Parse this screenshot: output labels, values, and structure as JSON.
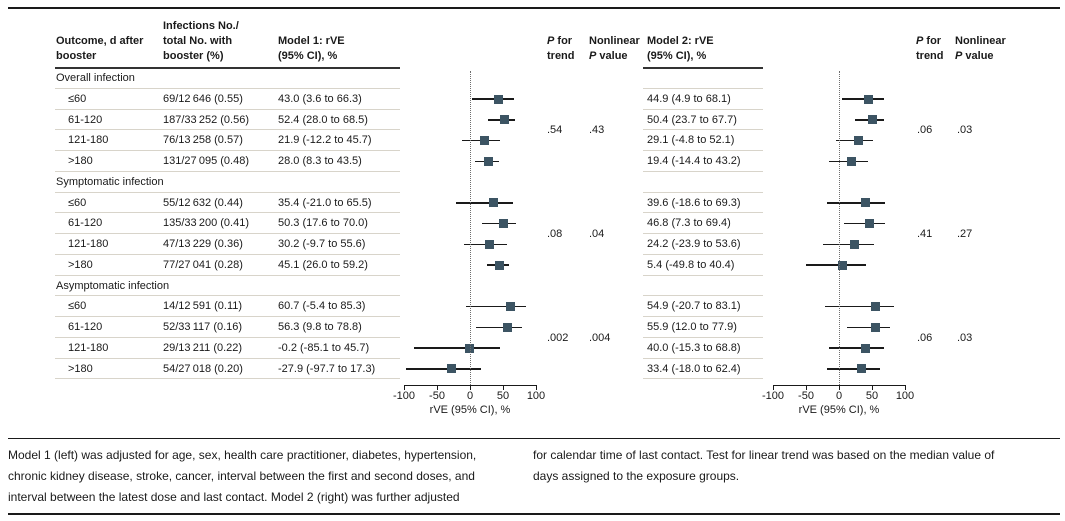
{
  "colors": {
    "marker": "#3c5463",
    "ci_line": "#1a1a1a",
    "row_rule": "#d8d4ca",
    "frame_rule": "#1a1a1a"
  },
  "headers": {
    "outcome": [
      "Outcome, d after",
      "booster"
    ],
    "infections": [
      "Infections No./",
      "total No. with",
      "booster (%)"
    ],
    "model1": [
      "Model 1: rVE",
      "(95% CI), %"
    ],
    "model2": [
      "Model 2: rVE",
      "(95% CI), %"
    ],
    "p": "P",
    "for_word": " for",
    "trend_word": "trend",
    "nonlinear_word": "Nonlinear",
    "value_word": " value"
  },
  "sections": [
    {
      "label": "Overall infection",
      "m1_p_trend": ".54",
      "m1_p_nonlinear": ".43",
      "m2_p_trend": ".06",
      "m2_p_nonlinear": ".03",
      "rows": [
        {
          "outcome": "≤60",
          "infections": "69/12 646 (0.55)",
          "m1_text": "43.0 (3.6 to 66.3)",
          "m1": [
            43.0,
            3.6,
            66.3
          ],
          "m2_text": "44.9 (4.9 to 68.1)",
          "m2": [
            44.9,
            4.9,
            68.1
          ]
        },
        {
          "outcome": "61-120",
          "infections": "187/33 252 (0.56)",
          "m1_text": "52.4 (28.0 to 68.5)",
          "m1": [
            52.4,
            28.0,
            68.5
          ],
          "m2_text": "50.4 (23.7 to 67.7)",
          "m2": [
            50.4,
            23.7,
            67.7
          ]
        },
        {
          "outcome": "121-180",
          "infections": "76/13 258 (0.57)",
          "m1_text": "21.9 (-12.2 to 45.7)",
          "m1": [
            21.9,
            -12.2,
            45.7
          ],
          "m2_text": "29.1 (-4.8 to 52.1)",
          "m2": [
            29.1,
            -4.8,
            52.1
          ]
        },
        {
          "outcome": ">180",
          "infections": "131/27 095 (0.48)",
          "m1_text": "28.0 (8.3 to 43.5)",
          "m1": [
            28.0,
            8.3,
            43.5
          ],
          "m2_text": "19.4 (-14.4 to 43.2)",
          "m2": [
            19.4,
            -14.4,
            43.2
          ]
        }
      ]
    },
    {
      "label": "Symptomatic infection",
      "m1_p_trend": ".08",
      "m1_p_nonlinear": ".04",
      "m2_p_trend": ".41",
      "m2_p_nonlinear": ".27",
      "rows": [
        {
          "outcome": "≤60",
          "infections": "55/12 632 (0.44)",
          "m1_text": "35.4 (-21.0 to 65.5)",
          "m1": [
            35.4,
            -21.0,
            65.5
          ],
          "m2_text": "39.6 (-18.6 to 69.3)",
          "m2": [
            39.6,
            -18.6,
            69.3
          ]
        },
        {
          "outcome": "61-120",
          "infections": "135/33 200 (0.41)",
          "m1_text": "50.3 (17.6 to 70.0)",
          "m1": [
            50.3,
            17.6,
            70.0
          ],
          "m2_text": "46.8 (7.3 to 69.4)",
          "m2": [
            46.8,
            7.3,
            69.4
          ]
        },
        {
          "outcome": "121-180",
          "infections": "47/13 229 (0.36)",
          "m1_text": "30.2 (-9.7 to 55.6)",
          "m1": [
            30.2,
            -9.7,
            55.6
          ],
          "m2_text": "24.2 (-23.9 to 53.6)",
          "m2": [
            24.2,
            -23.9,
            53.6
          ]
        },
        {
          "outcome": ">180",
          "infections": "77/27 041 (0.28)",
          "m1_text": "45.1 (26.0 to 59.2)",
          "m1": [
            45.1,
            26.0,
            59.2
          ],
          "m2_text": "5.4 (-49.8 to 40.4)",
          "m2": [
            5.4,
            -49.8,
            40.4
          ]
        }
      ]
    },
    {
      "label": "Asymptomatic infection",
      "m1_p_trend": ".002",
      "m1_p_nonlinear": ".004",
      "m2_p_trend": ".06",
      "m2_p_nonlinear": ".03",
      "rows": [
        {
          "outcome": "≤60",
          "infections": "14/12 591 (0.11)",
          "m1_text": "60.7 (-5.4 to 85.3)",
          "m1": [
            60.7,
            -5.4,
            85.3
          ],
          "m2_text": "54.9 (-20.7 to 83.1)",
          "m2": [
            54.9,
            -20.7,
            83.1
          ]
        },
        {
          "outcome": "61-120",
          "infections": "52/33 117 (0.16)",
          "m1_text": "56.3 (9.8 to 78.8)",
          "m1": [
            56.3,
            9.8,
            78.8
          ],
          "m2_text": "55.9 (12.0 to 77.9)",
          "m2": [
            55.9,
            12.0,
            77.9
          ]
        },
        {
          "outcome": "121-180",
          "infections": "29/13 211 (0.22)",
          "m1_text": "-0.2 (-85.1 to 45.7)",
          "m1": [
            -0.2,
            -85.1,
            45.7
          ],
          "m2_text": "40.0 (-15.3 to 68.8)",
          "m2": [
            40.0,
            -15.3,
            68.8
          ]
        },
        {
          "outcome": ">180",
          "infections": "54/27 018 (0.20)",
          "m1_text": "-27.9 (-97.7 to 17.3)",
          "m1": [
            -27.9,
            -97.7,
            17.3
          ],
          "m2_text": "33.4 (-18.0 to 62.4)",
          "m2": [
            33.4,
            -18.0,
            62.4
          ]
        }
      ]
    }
  ],
  "axis": {
    "ticks": [
      -100,
      -50,
      0,
      50,
      100
    ],
    "range": [
      -100,
      100
    ],
    "label": "rVE (95% CI), %",
    "reference_line_x": 0
  },
  "footnote": {
    "left": [
      "Model 1 (left) was adjusted for age, sex, health care practitioner, diabetes, hypertension,",
      "chronic kidney disease, stroke, cancer, interval between the first and second doses, and",
      "interval between the latest dose and last contact. Model 2 (right) was further adjusted"
    ],
    "right": [
      "for calendar time of last contact. Test for linear trend was based on the median value of",
      "days assigned to the exposure groups."
    ]
  },
  "chart_data": [
    {
      "type": "scatter",
      "variant": "forest-plot",
      "title": "Model 1: rVE (95% CI), %",
      "xlabel": "rVE (95% CI), %",
      "xlim": [
        -100,
        100
      ],
      "xticks": [
        -100,
        -50,
        0,
        50,
        100
      ],
      "reference_line_x": 0,
      "legend_position": "none",
      "grid": false,
      "groups": [
        {
          "name": "Overall infection",
          "p_for_trend": ".54",
          "nonlinear_p_value": ".43",
          "points": [
            {
              "label": "≤60",
              "estimate": 43.0,
              "ci_low": 3.6,
              "ci_high": 66.3
            },
            {
              "label": "61-120",
              "estimate": 52.4,
              "ci_low": 28.0,
              "ci_high": 68.5
            },
            {
              "label": "121-180",
              "estimate": 21.9,
              "ci_low": -12.2,
              "ci_high": 45.7
            },
            {
              "label": ">180",
              "estimate": 28.0,
              "ci_low": 8.3,
              "ci_high": 43.5
            }
          ]
        },
        {
          "name": "Symptomatic infection",
          "p_for_trend": ".08",
          "nonlinear_p_value": ".04",
          "points": [
            {
              "label": "≤60",
              "estimate": 35.4,
              "ci_low": -21.0,
              "ci_high": 65.5
            },
            {
              "label": "61-120",
              "estimate": 50.3,
              "ci_low": 17.6,
              "ci_high": 70.0
            },
            {
              "label": "121-180",
              "estimate": 30.2,
              "ci_low": -9.7,
              "ci_high": 55.6
            },
            {
              "label": ">180",
              "estimate": 45.1,
              "ci_low": 26.0,
              "ci_high": 59.2
            }
          ]
        },
        {
          "name": "Asymptomatic infection",
          "p_for_trend": ".002",
          "nonlinear_p_value": ".004",
          "points": [
            {
              "label": "≤60",
              "estimate": 60.7,
              "ci_low": -5.4,
              "ci_high": 85.3
            },
            {
              "label": "61-120",
              "estimate": 56.3,
              "ci_low": 9.8,
              "ci_high": 78.8
            },
            {
              "label": "121-180",
              "estimate": -0.2,
              "ci_low": -85.1,
              "ci_high": 45.7
            },
            {
              "label": ">180",
              "estimate": -27.9,
              "ci_low": -97.7,
              "ci_high": 17.3
            }
          ]
        }
      ]
    },
    {
      "type": "scatter",
      "variant": "forest-plot",
      "title": "Model 2: rVE (95% CI), %",
      "xlabel": "rVE (95% CI), %",
      "xlim": [
        -100,
        100
      ],
      "xticks": [
        -100,
        -50,
        0,
        50,
        100
      ],
      "reference_line_x": 0,
      "legend_position": "none",
      "grid": false,
      "groups": [
        {
          "name": "Overall infection",
          "p_for_trend": ".06",
          "nonlinear_p_value": ".03",
          "points": [
            {
              "label": "≤60",
              "estimate": 44.9,
              "ci_low": 4.9,
              "ci_high": 68.1
            },
            {
              "label": "61-120",
              "estimate": 50.4,
              "ci_low": 23.7,
              "ci_high": 67.7
            },
            {
              "label": "121-180",
              "estimate": 29.1,
              "ci_low": -4.8,
              "ci_high": 52.1
            },
            {
              "label": ">180",
              "estimate": 19.4,
              "ci_low": -14.4,
              "ci_high": 43.2
            }
          ]
        },
        {
          "name": "Symptomatic infection",
          "p_for_trend": ".41",
          "nonlinear_p_value": ".27",
          "points": [
            {
              "label": "≤60",
              "estimate": 39.6,
              "ci_low": -18.6,
              "ci_high": 69.3
            },
            {
              "label": "61-120",
              "estimate": 46.8,
              "ci_low": 7.3,
              "ci_high": 69.4
            },
            {
              "label": "121-180",
              "estimate": 24.2,
              "ci_low": -23.9,
              "ci_high": 53.6
            },
            {
              "label": ">180",
              "estimate": 5.4,
              "ci_low": -49.8,
              "ci_high": 40.4
            }
          ]
        },
        {
          "name": "Asymptomatic infection",
          "p_for_trend": ".06",
          "nonlinear_p_value": ".03",
          "points": [
            {
              "label": "≤60",
              "estimate": 54.9,
              "ci_low": -20.7,
              "ci_high": 83.1
            },
            {
              "label": "61-120",
              "estimate": 55.9,
              "ci_low": 12.0,
              "ci_high": 77.9
            },
            {
              "label": "121-180",
              "estimate": 40.0,
              "ci_low": -15.3,
              "ci_high": 68.8
            },
            {
              "label": ">180",
              "estimate": 33.4,
              "ci_low": -18.0,
              "ci_high": 62.4
            }
          ]
        }
      ]
    }
  ]
}
